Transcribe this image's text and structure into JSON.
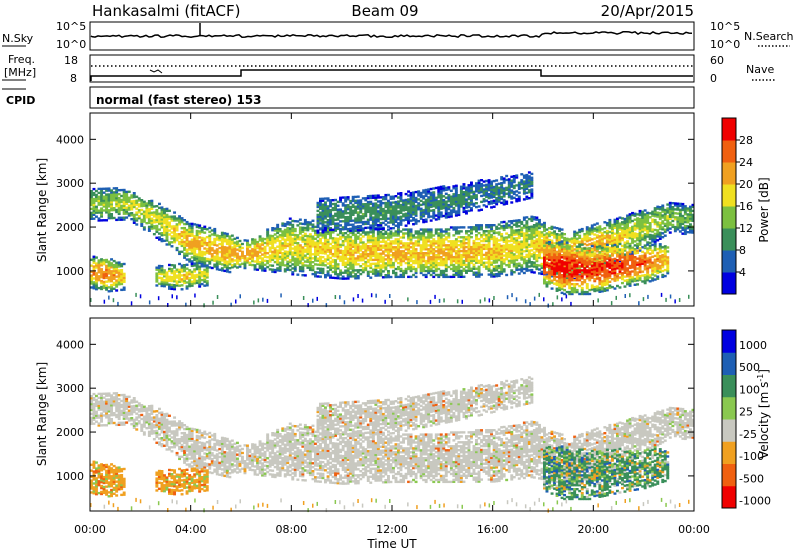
{
  "header": {
    "station": "Hankasalmi (fitACF)",
    "beam": "Beam 09",
    "date": "20/Apr/2015"
  },
  "strips": {
    "nsky_label": "N.Sky",
    "nsearch_label": "N.Search",
    "left_ticks": [
      "10^5",
      "10^0"
    ],
    "right_ticks": [
      "10^5",
      "10^0"
    ],
    "freq_label_1": "Freq.",
    "freq_label_2": "[MHz]",
    "freq_ticks": [
      "18",
      "8"
    ],
    "nave_label": "Nave",
    "nave_ticks": [
      "60",
      "0"
    ],
    "cpid_label": "CPID",
    "cpid_text": "normal (fast stereo) 153"
  },
  "colors": {
    "power": [
      "#0000e0",
      "#1e5fb4",
      "#3a8f5a",
      "#7cc040",
      "#f0e020",
      "#f0a020",
      "#f06010",
      "#f00000"
    ],
    "velocity": [
      "#f00000",
      "#f06010",
      "#f0a020",
      "#c8c8c0",
      "#8ac850",
      "#3a8f5a",
      "#1e5fb4",
      "#0000e0"
    ]
  },
  "chart_data": [
    {
      "type": "heatmap",
      "panel": "power",
      "xlabel": "",
      "ylabel": "Slant Range [km]",
      "xlim": [
        0,
        24
      ],
      "ylim": [
        200,
        4600
      ],
      "yticks": [
        "1000",
        "2000",
        "3000",
        "4000"
      ],
      "colorbar_label": "Power [dB]",
      "colorbar_ticks": [
        "4",
        "8",
        "12",
        "16",
        "20",
        "24",
        "28"
      ],
      "colorbar_range": [
        0,
        32
      ],
      "echo_bands": [
        {
          "name": "main",
          "t": [
            0.0,
            1.5,
            3.0,
            4.0,
            5.5,
            6.0,
            8.0,
            10.0,
            12.0,
            14.0,
            16.0,
            17.5,
            18.0,
            19.0,
            20.0,
            21.0,
            22.0,
            23.0,
            24.0
          ],
          "center_km": [
            2550,
            2550,
            2050,
            1650,
            1450,
            1400,
            1600,
            1450,
            1450,
            1450,
            1500,
            1650,
            1550,
            1350,
            1550,
            1750,
            2000,
            2250,
            2200
          ],
          "width_km": [
            380,
            350,
            420,
            450,
            450,
            300,
            650,
            600,
            560,
            560,
            600,
            650,
            600,
            550,
            550,
            500,
            450,
            350,
            350
          ],
          "peak_dB": [
            14,
            16,
            18,
            21,
            22,
            22,
            18,
            19,
            21,
            21,
            20,
            17,
            22,
            24,
            22,
            19,
            16,
            14,
            13
          ]
        },
        {
          "name": "upper",
          "t": [
            9.0,
            12.0,
            15.0,
            17.5
          ],
          "center_km": [
            2300,
            2400,
            2700,
            3000
          ],
          "width_km": [
            400,
            400,
            350,
            300
          ],
          "peak_dB": [
            10,
            10,
            9,
            8
          ]
        },
        {
          "name": "low-early",
          "t": [
            0.0,
            0.5,
            1.3
          ],
          "center_km": [
            1000,
            950,
            900
          ],
          "width_km": [
            350,
            400,
            300
          ],
          "peak_dB": [
            22,
            24,
            20
          ]
        },
        {
          "name": "low-morning",
          "t": [
            2.6,
            3.5,
            4.6
          ],
          "center_km": [
            900,
            900,
            950
          ],
          "width_km": [
            250,
            300,
            250
          ],
          "peak_dB": [
            16,
            20,
            16
          ]
        },
        {
          "name": "low-evening",
          "t": [
            18.0,
            18.8,
            19.8,
            21.0,
            22.0,
            23.0
          ],
          "center_km": [
            1200,
            1100,
            1050,
            1150,
            1200,
            1300
          ],
          "width_km": [
            500,
            600,
            550,
            500,
            450,
            350
          ],
          "peak_dB": [
            28,
            30,
            28,
            28,
            26,
            20
          ]
        }
      ]
    },
    {
      "type": "heatmap",
      "panel": "velocity",
      "xlabel": "Time UT",
      "ylabel": "Slant Range [km]",
      "xlim": [
        0,
        24
      ],
      "ylim": [
        200,
        4600
      ],
      "xticks": [
        "00:00",
        "04:00",
        "08:00",
        "12:00",
        "16:00",
        "20:00",
        "00:00"
      ],
      "yticks": [
        "1000",
        "2000",
        "3000",
        "4000"
      ],
      "colorbar_label": "Velocity [m s",
      "colorbar_unit_exponent": "-1",
      "colorbar_ticks": [
        "1000",
        "500",
        "100",
        "25",
        "-25",
        "-100",
        "-500",
        "-1000"
      ],
      "notes": "Main echo band mostly ground scatter (grey); low-range early and morning echoes orange (-100 to -500 m/s); evening low-range echoes green/blue (100 to 500 m/s)"
    }
  ]
}
